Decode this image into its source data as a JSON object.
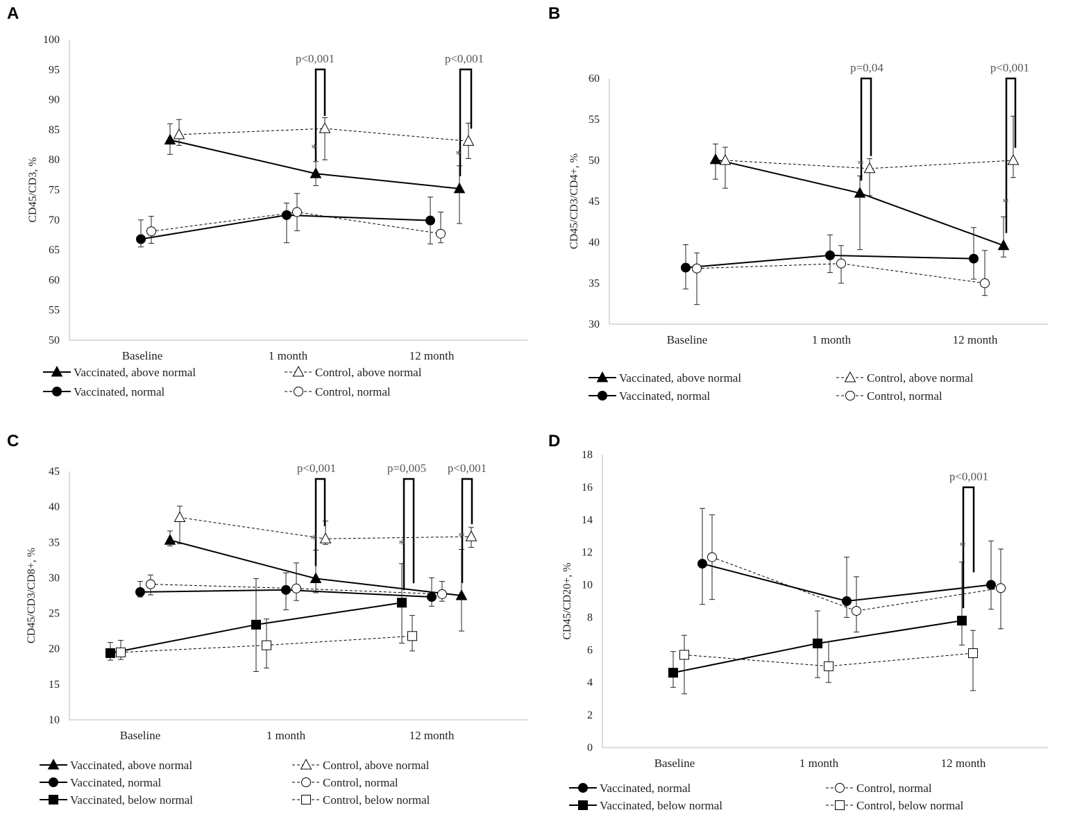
{
  "chart_data": [
    {
      "panel": "A",
      "type": "line",
      "ylabel": "CD45/CD3, %",
      "ylim": [
        50,
        100
      ],
      "yticks": [
        50,
        55,
        60,
        65,
        70,
        75,
        80,
        85,
        90,
        95,
        100
      ],
      "categories": [
        "Baseline",
        "1 month",
        "12 month"
      ],
      "series": [
        {
          "name": "Vaccinated, above normal",
          "style": "solid",
          "marker": "triangle-filled",
          "values": [
            83.3,
            77.7,
            75.2
          ],
          "err_low": [
            2.4,
            2.0,
            5.8
          ],
          "err_high": [
            2.7,
            2.0,
            3.8
          ]
        },
        {
          "name": "Control, above normal",
          "style": "dashed",
          "marker": "triangle-open",
          "values": [
            84.2,
            85.2,
            83.1
          ],
          "err_low": [
            1.8,
            5.2,
            2.9
          ],
          "err_high": [
            2.5,
            1.8,
            3.0
          ]
        },
        {
          "name": "Vaccinated, normal",
          "style": "solid",
          "marker": "circle-filled",
          "values": [
            66.8,
            70.8,
            69.9
          ],
          "err_low": [
            1.3,
            4.6,
            3.9
          ],
          "err_high": [
            3.2,
            2.0,
            3.9
          ]
        },
        {
          "name": "Control, normal",
          "style": "dashed",
          "marker": "circle-open",
          "values": [
            68.1,
            71.3,
            67.7
          ],
          "err_low": [
            2.0,
            3.1,
            1.5
          ],
          "err_high": [
            2.5,
            3.1,
            3.6
          ]
        }
      ],
      "significance": [
        {
          "category": "1 month",
          "label": "p<0,001",
          "star": "*"
        },
        {
          "category": "12 month",
          "label": "p<0,001",
          "star": "*"
        }
      ],
      "legend": [
        "Vaccinated, above normal",
        "Control, above normal",
        "Vaccinated, normal",
        "Control, normal"
      ]
    },
    {
      "panel": "B",
      "type": "line",
      "ylabel": "CD45/CD3/CD4+, %",
      "ylim": [
        30,
        60
      ],
      "yticks": [
        30,
        35,
        40,
        45,
        50,
        55,
        60
      ],
      "categories": [
        "Baseline",
        "1 month",
        "12 month"
      ],
      "series": [
        {
          "name": "Vaccinated, above normal",
          "style": "solid",
          "marker": "triangle-filled",
          "values": [
            50.1,
            46.0,
            39.6
          ],
          "err_low": [
            2.4,
            6.9,
            1.4
          ],
          "err_high": [
            1.9,
            2.1,
            3.5
          ]
        },
        {
          "name": "Control, above normal",
          "style": "dashed",
          "marker": "triangle-open",
          "values": [
            50.0,
            49.0,
            50.0
          ],
          "err_low": [
            3.4,
            3.3,
            2.1
          ],
          "err_high": [
            1.6,
            1.2,
            5.4
          ]
        },
        {
          "name": "Vaccinated, normal",
          "style": "solid",
          "marker": "circle-filled",
          "values": [
            36.9,
            38.4,
            38.0
          ],
          "err_low": [
            2.6,
            2.1,
            2.5
          ],
          "err_high": [
            2.8,
            2.5,
            3.8
          ]
        },
        {
          "name": "Control, normal",
          "style": "dashed",
          "marker": "circle-open",
          "values": [
            36.8,
            37.4,
            35.0
          ],
          "err_low": [
            4.4,
            2.4,
            1.5
          ],
          "err_high": [
            1.9,
            2.2,
            4.0
          ]
        }
      ],
      "significance": [
        {
          "category": "1 month",
          "label": "p=0,04",
          "star": "*"
        },
        {
          "category": "12 month",
          "label": "p<0,001",
          "star": "*"
        }
      ],
      "legend": [
        "Vaccinated, above normal",
        "Control, above normal",
        "Vaccinated, normal",
        "Control, normal"
      ]
    },
    {
      "panel": "C",
      "type": "line",
      "ylabel": "CD45/CD3/CD8+, %",
      "ylim": [
        10,
        45
      ],
      "yticks": [
        10,
        15,
        20,
        25,
        30,
        35,
        40,
        45
      ],
      "categories": [
        "Baseline",
        "1 month",
        "12 month"
      ],
      "series": [
        {
          "name": "Vaccinated, above normal",
          "style": "solid",
          "marker": "triangle-filled",
          "values": [
            35.3,
            29.9,
            27.5
          ],
          "err_low": [
            0.8,
            2.0,
            5.0
          ],
          "err_high": [
            1.3,
            4.0,
            6.5
          ]
        },
        {
          "name": "Control, above normal",
          "style": "dashed",
          "marker": "triangle-open",
          "values": [
            38.5,
            35.5,
            35.8
          ],
          "err_low": [
            3.7,
            0.8,
            1.5
          ],
          "err_high": [
            1.6,
            2.5,
            1.3
          ]
        },
        {
          "name": "Vaccinated, normal",
          "style": "solid",
          "marker": "circle-filled",
          "values": [
            28.0,
            28.3,
            27.3
          ],
          "err_low": [
            0.7,
            2.8,
            1.3
          ],
          "err_high": [
            1.5,
            2.4,
            2.7
          ]
        },
        {
          "name": "Control, normal",
          "style": "dashed",
          "marker": "circle-open",
          "values": [
            29.1,
            28.5,
            27.7
          ],
          "err_low": [
            1.5,
            1.7,
            1.0
          ],
          "err_high": [
            1.3,
            3.6,
            1.8
          ]
        },
        {
          "name": "Vaccinated, below normal",
          "style": "solid",
          "marker": "square-filled",
          "values": [
            19.4,
            23.4,
            26.5
          ],
          "err_low": [
            1.0,
            6.6,
            5.7
          ],
          "err_high": [
            1.5,
            6.5,
            5.5
          ]
        },
        {
          "name": "Control, below normal",
          "style": "dashed",
          "marker": "square-open",
          "values": [
            19.5,
            20.5,
            21.8
          ],
          "err_low": [
            1.0,
            3.2,
            2.1
          ],
          "err_high": [
            1.7,
            3.7,
            2.9
          ]
        }
      ],
      "significance": [
        {
          "category": "1 month",
          "label": "p<0,001",
          "star": "*"
        },
        {
          "category": "12 month",
          "label": "p=0,005",
          "star": "*"
        },
        {
          "category": "12 month",
          "label": "p<0,001",
          "star": "*"
        }
      ],
      "legend": [
        "Vaccinated, above normal",
        "Control, above normal",
        "Vaccinated, normal",
        "Control, normal",
        "Vaccinated, below normal",
        "Control, below normal"
      ]
    },
    {
      "panel": "D",
      "type": "line",
      "ylabel": "CD45/CD20+, %",
      "ylim": [
        0,
        18
      ],
      "yticks": [
        0,
        2,
        4,
        6,
        8,
        10,
        12,
        14,
        16,
        18
      ],
      "categories": [
        "Baseline",
        "1 month",
        "12 month"
      ],
      "series": [
        {
          "name": "Vaccinated, normal",
          "style": "solid",
          "marker": "circle-filled",
          "values": [
            11.3,
            9.0,
            10.0
          ],
          "err_low": [
            2.5,
            1.0,
            1.5
          ],
          "err_high": [
            3.4,
            2.7,
            2.7
          ]
        },
        {
          "name": "Control, normal",
          "style": "dashed",
          "marker": "circle-open",
          "values": [
            11.7,
            8.4,
            9.8
          ],
          "err_low": [
            2.6,
            1.3,
            2.5
          ],
          "err_high": [
            2.6,
            2.1,
            2.4
          ]
        },
        {
          "name": "Vaccinated, below normal",
          "style": "solid",
          "marker": "square-filled",
          "values": [
            4.6,
            6.4,
            7.8
          ],
          "err_low": [
            0.9,
            2.1,
            1.5
          ],
          "err_high": [
            1.3,
            2.0,
            3.6
          ]
        },
        {
          "name": "Control, below normal",
          "style": "dashed",
          "marker": "square-open",
          "values": [
            5.7,
            5.0,
            5.8
          ],
          "err_low": [
            2.4,
            1.0,
            2.3
          ],
          "err_high": [
            1.2,
            1.5,
            1.4
          ]
        }
      ],
      "significance": [
        {
          "category": "12 month",
          "label": "p<0,001",
          "star": "*"
        }
      ],
      "legend": [
        "Vaccinated, normal",
        "Control, normal",
        "Vaccinated, below normal",
        "Control, below normal"
      ]
    }
  ]
}
